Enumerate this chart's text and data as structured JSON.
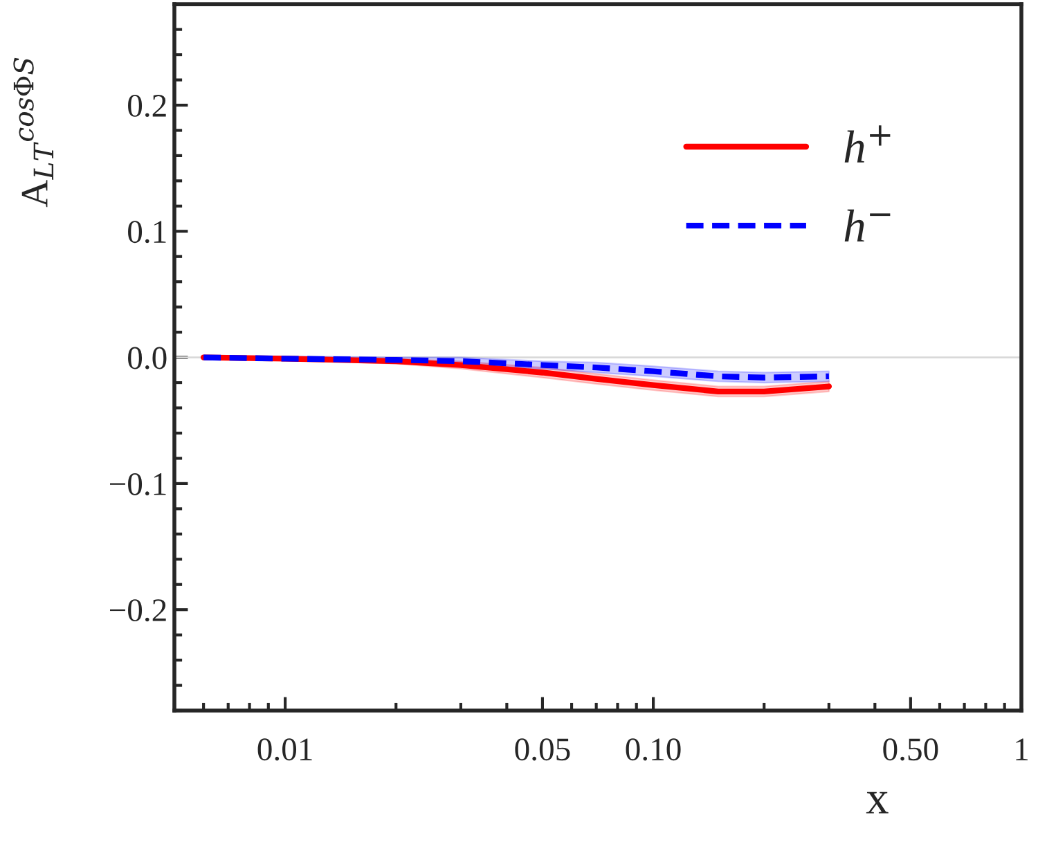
{
  "chart_data": {
    "type": "line",
    "xlabel": "x",
    "ylabel": "A$_{LT}$$^{cosΦS}$",
    "x": [
      0.006,
      0.01,
      0.02,
      0.03,
      0.05,
      0.07,
      0.1,
      0.15,
      0.2,
      0.3
    ],
    "series": [
      {
        "name": "h$^{+}$",
        "color": "#ff0000",
        "line_style": "solid",
        "values": [
          0,
          -0.001,
          -0.003,
          -0.006,
          -0.012,
          -0.017,
          -0.022,
          -0.027,
          -0.027,
          -0.023
        ],
        "lower": [
          -0.001,
          -0.002,
          -0.005,
          -0.009,
          -0.016,
          -0.021,
          -0.026,
          -0.031,
          -0.031,
          -0.027
        ],
        "upper": [
          0.001,
          0.0,
          -0.001,
          -0.003,
          -0.008,
          -0.013,
          -0.018,
          -0.023,
          -0.023,
          -0.019
        ]
      },
      {
        "name": "h$^{−}$",
        "color": "#0000ff",
        "line_style": "dashed",
        "values": [
          0,
          -0.001,
          -0.002,
          -0.003,
          -0.006,
          -0.008,
          -0.011,
          -0.015,
          -0.016,
          -0.015
        ],
        "lower": [
          -0.001,
          -0.002,
          -0.004,
          -0.006,
          -0.009,
          -0.012,
          -0.015,
          -0.019,
          -0.02,
          -0.019
        ],
        "upper": [
          0.001,
          0.001,
          0.0,
          0.0,
          -0.003,
          -0.004,
          -0.007,
          -0.011,
          -0.012,
          -0.011
        ]
      }
    ],
    "log": "x",
    "xlim": [
      0.005,
      1
    ],
    "ylim": [
      -0.28,
      0.28
    ],
    "xticks": [
      0.01,
      0.05,
      {
        "value": 0.1,
        "label": "0.10"
      },
      {
        "value": 0.5,
        "label": "0.50"
      },
      1
    ],
    "yticks": [
      {
        "value": -0.2,
        "label": "−0.2"
      },
      {
        "value": -0.1,
        "label": "−0.1"
      },
      {
        "value": 0,
        "label": "0.0"
      },
      0.1,
      0.2
    ],
    "ref_lines": [
      {
        "axis": "y",
        "value": 0,
        "color": "#d9d9d9"
      }
    ],
    "grid": false,
    "legend": "top right"
  }
}
